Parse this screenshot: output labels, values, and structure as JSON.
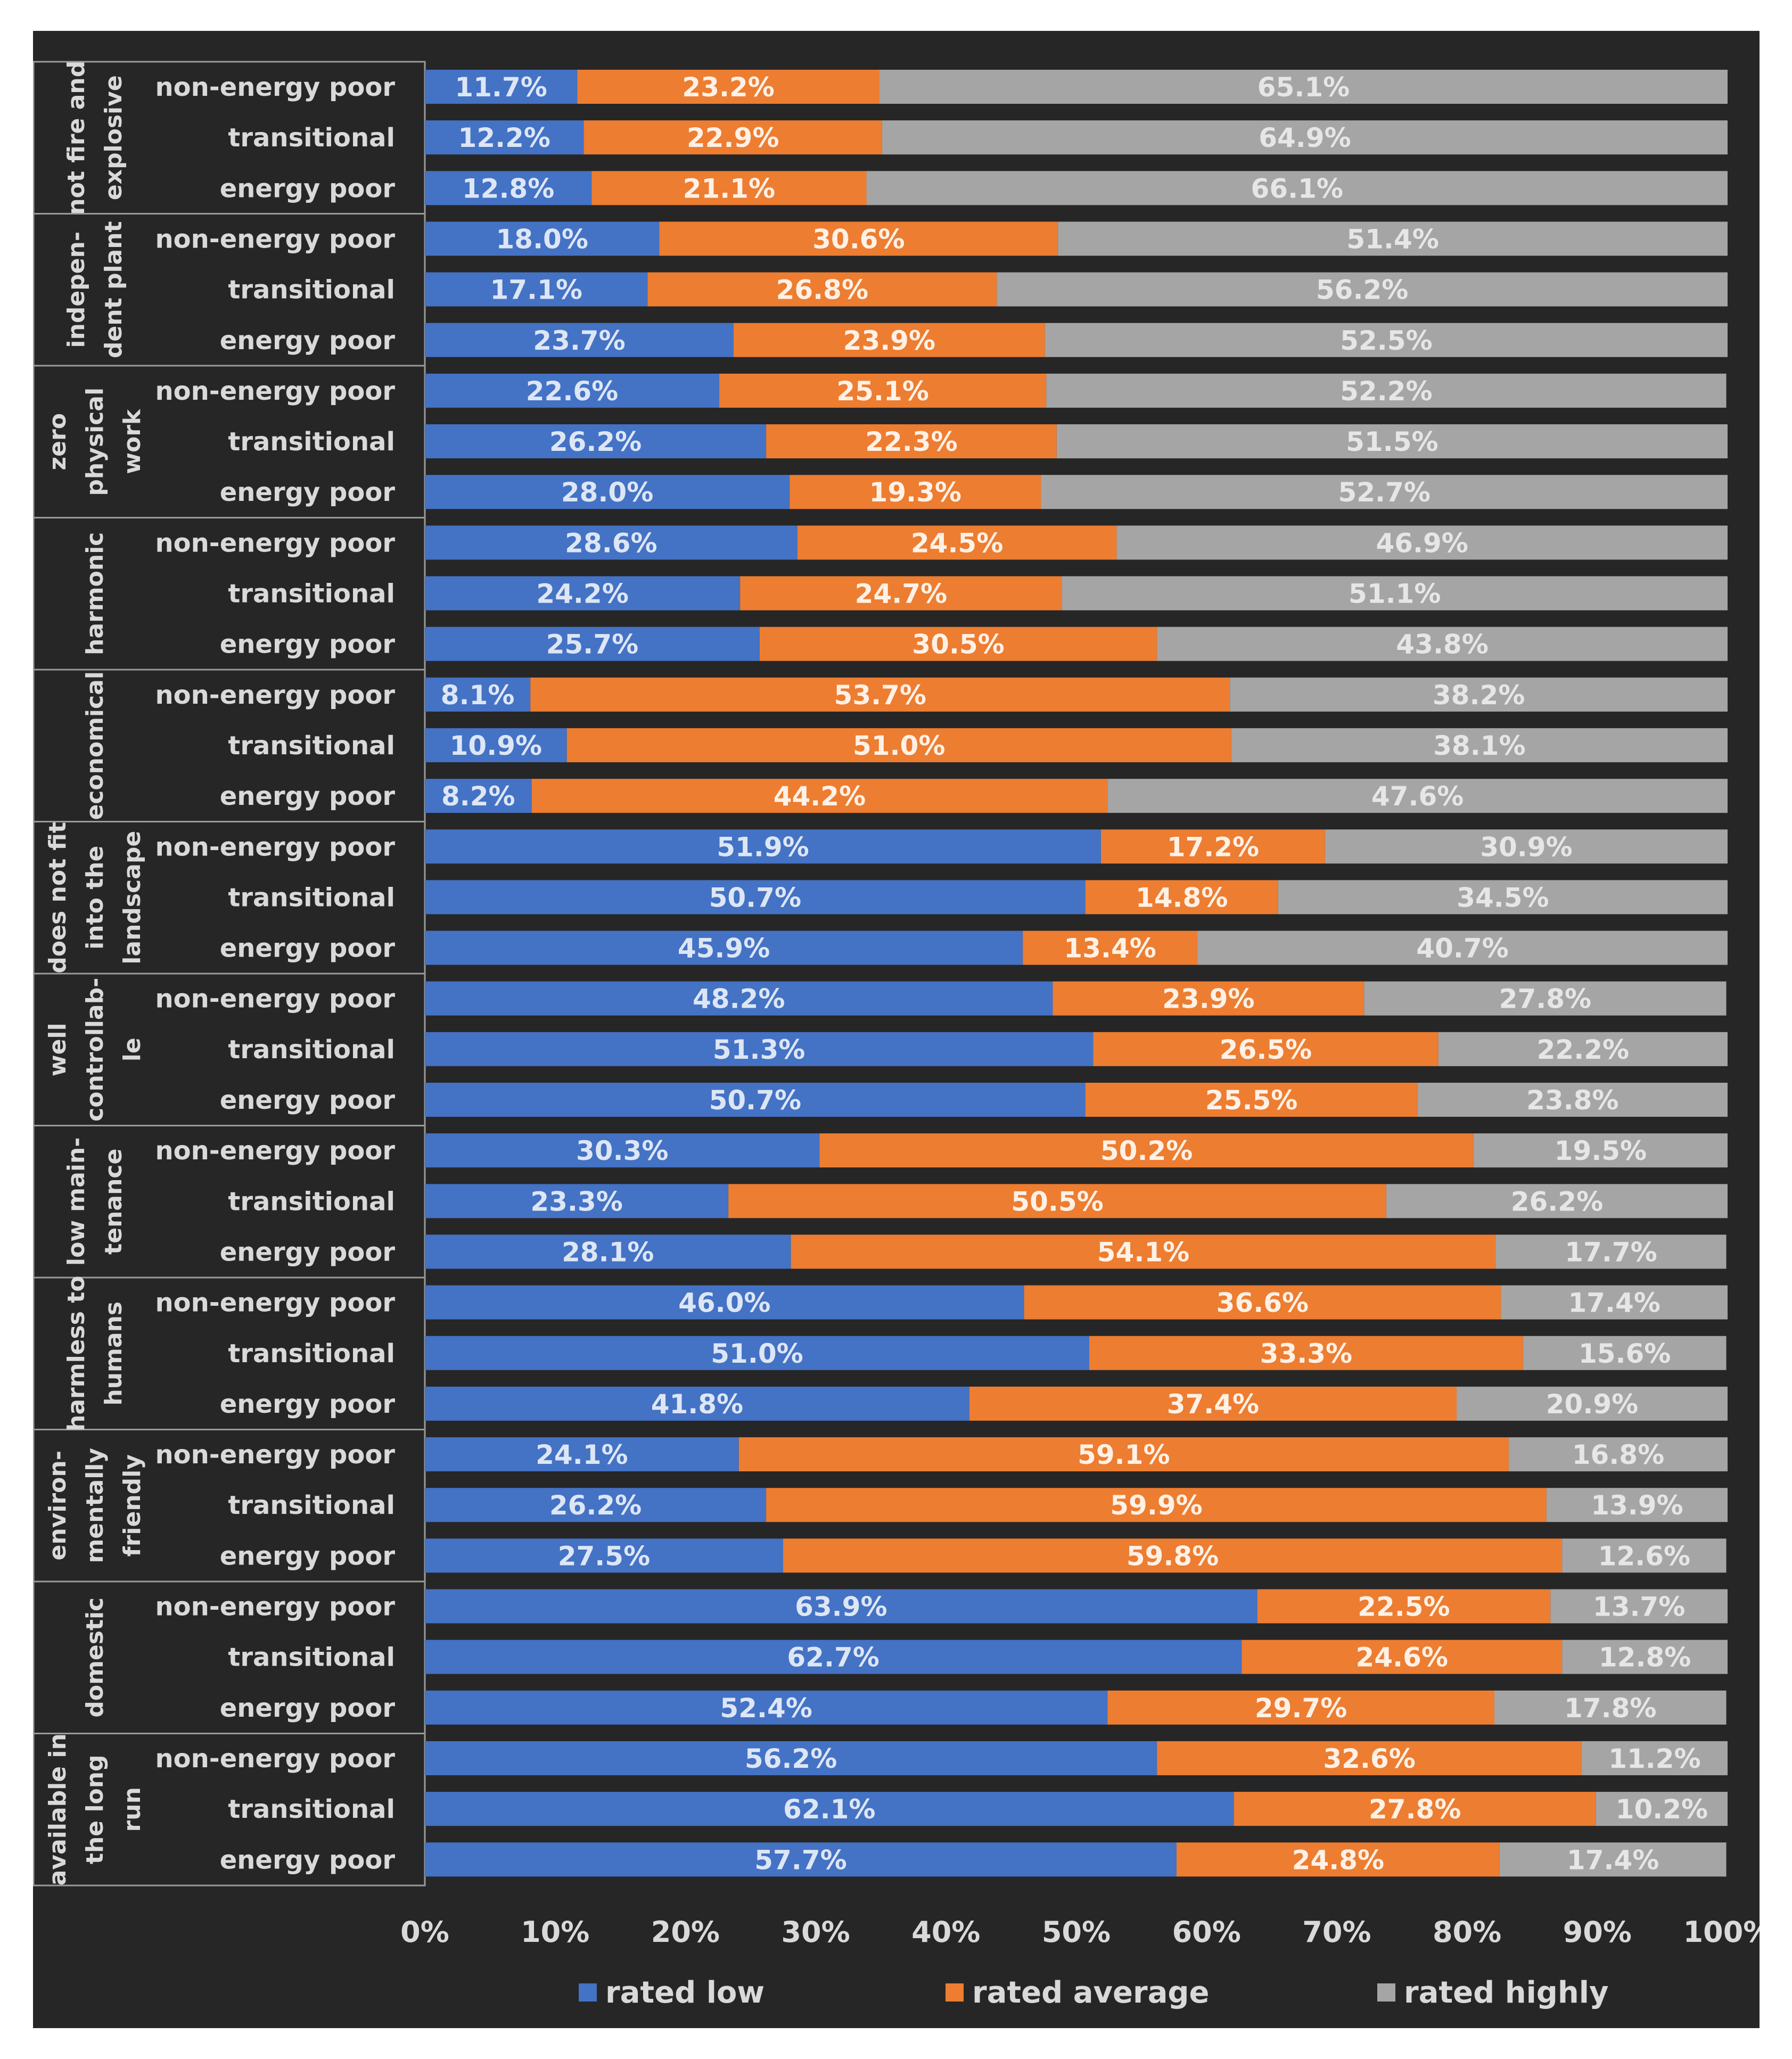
{
  "chart_data": {
    "type": "bar",
    "orientation": "horizontal",
    "stacked": "percent",
    "title": "",
    "xlabel": "",
    "ylabel": "",
    "xlim": [
      0,
      100
    ],
    "x_ticks": [
      "0%",
      "10%",
      "20%",
      "30%",
      "40%",
      "50%",
      "60%",
      "70%",
      "80%",
      "90%",
      "100%"
    ],
    "legend_position": "bottom",
    "grid": false,
    "series": [
      {
        "name": "rated low",
        "color": "#4472c4"
      },
      {
        "name": "rated average",
        "color": "#ed7d31"
      },
      {
        "name": "rated highly",
        "color": "#a5a5a5"
      }
    ],
    "groups": [
      {
        "label": [
          "not fire and",
          "explosive"
        ],
        "rows": [
          {
            "category": "non-energy poor",
            "values": [
              11.7,
              23.2,
              65.1
            ],
            "labels": [
              "11.7%",
              "23.2%",
              "65.1%"
            ]
          },
          {
            "category": "transitional",
            "values": [
              12.2,
              22.9,
              64.9
            ],
            "labels": [
              "12.2%",
              "22.9%",
              "64.9%"
            ]
          },
          {
            "category": "energy poor",
            "values": [
              12.8,
              21.1,
              66.1
            ],
            "labels": [
              "12.8%",
              "21.1%",
              "66.1%"
            ]
          }
        ]
      },
      {
        "label": [
          "indepen-",
          "dent plant"
        ],
        "rows": [
          {
            "category": "non-energy poor",
            "values": [
              18.0,
              30.6,
              51.4
            ],
            "labels": [
              "18.0%",
              "30.6%",
              "51.4%"
            ]
          },
          {
            "category": "transitional",
            "values": [
              17.1,
              26.8,
              56.2
            ],
            "labels": [
              "17.1%",
              "26.8%",
              "56.2%"
            ]
          },
          {
            "category": "energy poor",
            "values": [
              23.7,
              23.9,
              52.5
            ],
            "labels": [
              "23.7%",
              "23.9%",
              "52.5%"
            ]
          }
        ]
      },
      {
        "label": [
          "zero",
          "physical",
          "work"
        ],
        "rows": [
          {
            "category": "non-energy poor",
            "values": [
              22.6,
              25.1,
              52.2
            ],
            "labels": [
              "22.6%",
              "25.1%",
              "52.2%"
            ]
          },
          {
            "category": "transitional",
            "values": [
              26.2,
              22.3,
              51.5
            ],
            "labels": [
              "26.2%",
              "22.3%",
              "51.5%"
            ]
          },
          {
            "category": "energy poor",
            "values": [
              28.0,
              19.3,
              52.7
            ],
            "labels": [
              "28.0%",
              "19.3%",
              "52.7%"
            ]
          }
        ]
      },
      {
        "label": [
          "harmonic"
        ],
        "rows": [
          {
            "category": "non-energy poor",
            "values": [
              28.6,
              24.5,
              46.9
            ],
            "labels": [
              "28.6%",
              "24.5%",
              "46.9%"
            ]
          },
          {
            "category": "transitional",
            "values": [
              24.2,
              24.7,
              51.1
            ],
            "labels": [
              "24.2%",
              "24.7%",
              "51.1%"
            ]
          },
          {
            "category": "energy poor",
            "values": [
              25.7,
              30.5,
              43.8
            ],
            "labels": [
              "25.7%",
              "30.5%",
              "43.8%"
            ]
          }
        ]
      },
      {
        "label": [
          "economical"
        ],
        "rows": [
          {
            "category": "non-energy poor",
            "values": [
              8.1,
              53.7,
              38.2
            ],
            "labels": [
              "8.1%",
              "53.7%",
              "38.2%"
            ]
          },
          {
            "category": "transitional",
            "values": [
              10.9,
              51.0,
              38.1
            ],
            "labels": [
              "10.9%",
              "51.0%",
              "38.1%"
            ]
          },
          {
            "category": "energy poor",
            "values": [
              8.2,
              44.2,
              47.6
            ],
            "labels": [
              "8.2%",
              "44.2%",
              "47.6%"
            ]
          }
        ]
      },
      {
        "label": [
          "does not fit",
          "into the",
          "landscape"
        ],
        "rows": [
          {
            "category": "non-energy poor",
            "values": [
              51.9,
              17.2,
              30.9
            ],
            "labels": [
              "51.9%",
              "17.2%",
              "30.9%"
            ]
          },
          {
            "category": "transitional",
            "values": [
              50.7,
              14.8,
              34.5
            ],
            "labels": [
              "50.7%",
              "14.8%",
              "34.5%"
            ]
          },
          {
            "category": "energy poor",
            "values": [
              45.9,
              13.4,
              40.7
            ],
            "labels": [
              "45.9%",
              "13.4%",
              "40.7%"
            ]
          }
        ]
      },
      {
        "label": [
          "well",
          "controllab-",
          "le"
        ],
        "rows": [
          {
            "category": "non-energy poor",
            "values": [
              48.2,
              23.9,
              27.8
            ],
            "labels": [
              "48.2%",
              "23.9%",
              "27.8%"
            ]
          },
          {
            "category": "transitional",
            "values": [
              51.3,
              26.5,
              22.2
            ],
            "labels": [
              "51.3%",
              "26.5%",
              "22.2%"
            ]
          },
          {
            "category": "energy poor",
            "values": [
              50.7,
              25.5,
              23.8
            ],
            "labels": [
              "50.7%",
              "25.5%",
              "23.8%"
            ]
          }
        ]
      },
      {
        "label": [
          "low main-",
          "tenance"
        ],
        "rows": [
          {
            "category": "non-energy poor",
            "values": [
              30.3,
              50.2,
              19.5
            ],
            "labels": [
              "30.3%",
              "50.2%",
              "19.5%"
            ]
          },
          {
            "category": "transitional",
            "values": [
              23.3,
              50.5,
              26.2
            ],
            "labels": [
              "23.3%",
              "50.5%",
              "26.2%"
            ]
          },
          {
            "category": "energy poor",
            "values": [
              28.1,
              54.1,
              17.7
            ],
            "labels": [
              "28.1%",
              "54.1%",
              "17.7%"
            ]
          }
        ]
      },
      {
        "label": [
          "harmless to",
          "humans"
        ],
        "rows": [
          {
            "category": "non-energy poor",
            "values": [
              46.0,
              36.6,
              17.4
            ],
            "labels": [
              "46.0%",
              "36.6%",
              "17.4%"
            ]
          },
          {
            "category": "transitional",
            "values": [
              51.0,
              33.3,
              15.6
            ],
            "labels": [
              "51.0%",
              "33.3%",
              "15.6%"
            ]
          },
          {
            "category": "energy poor",
            "values": [
              41.8,
              37.4,
              20.9
            ],
            "labels": [
              "41.8%",
              "37.4%",
              "20.9%"
            ]
          }
        ]
      },
      {
        "label": [
          "environ-",
          "mentally",
          "friendly"
        ],
        "rows": [
          {
            "category": "non-energy poor",
            "values": [
              24.1,
              59.1,
              16.8
            ],
            "labels": [
              "24.1%",
              "59.1%",
              "16.8%"
            ]
          },
          {
            "category": "transitional",
            "values": [
              26.2,
              59.9,
              13.9
            ],
            "labels": [
              "26.2%",
              "59.9%",
              "13.9%"
            ]
          },
          {
            "category": "energy poor",
            "values": [
              27.5,
              59.8,
              12.6
            ],
            "labels": [
              "27.5%",
              "59.8%",
              "12.6%"
            ]
          }
        ]
      },
      {
        "label": [
          "domestic"
        ],
        "rows": [
          {
            "category": "non-energy poor",
            "values": [
              63.9,
              22.5,
              13.7
            ],
            "labels": [
              "63.9%",
              "22.5%",
              "13.7%"
            ]
          },
          {
            "category": "transitional",
            "values": [
              62.7,
              24.6,
              12.8
            ],
            "labels": [
              "62.7%",
              "24.6%",
              "12.8%"
            ]
          },
          {
            "category": "energy poor",
            "values": [
              52.4,
              29.7,
              17.8
            ],
            "labels": [
              "52.4%",
              "29.7%",
              "17.8%"
            ]
          }
        ]
      },
      {
        "label": [
          "available in",
          "the long",
          "run"
        ],
        "rows": [
          {
            "category": "non-energy poor",
            "values": [
              56.2,
              32.6,
              11.2
            ],
            "labels": [
              "56.2%",
              "32.6%",
              "11.2%"
            ]
          },
          {
            "category": "transitional",
            "values": [
              62.1,
              27.8,
              10.2
            ],
            "labels": [
              "62.1%",
              "27.8%",
              "10.2%"
            ]
          },
          {
            "category": "energy poor",
            "values": [
              57.7,
              24.8,
              17.4
            ],
            "labels": [
              "57.7%",
              "24.8%",
              "17.4%"
            ]
          }
        ]
      }
    ]
  }
}
